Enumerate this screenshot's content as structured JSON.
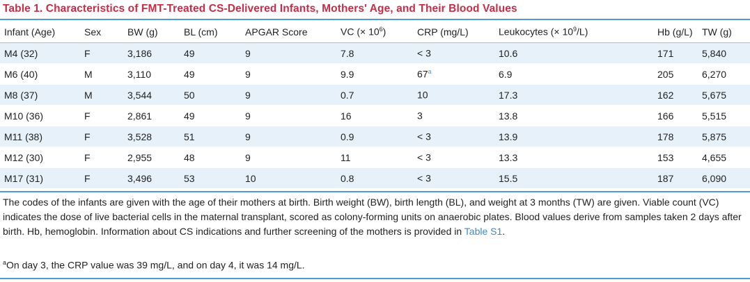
{
  "title": "Table 1.  Characteristics of FMT-Treated CS-Delivered Infants, Mothers' Age, and Their Blood Values",
  "headers": {
    "infant": "Infant (Age)",
    "sex": "Sex",
    "bw": "BW (g)",
    "bl": "BL (cm)",
    "apgar": "APGAR Score",
    "vc_base": "VC (× 10",
    "vc_exp": "6",
    "vc_end": ")",
    "crp": "CRP (mg/L)",
    "leuk_base": "Leukocytes (× 10",
    "leuk_exp": "9",
    "leuk_end": "/L)",
    "hb": "Hb (g/L)",
    "tw": "TW (g)"
  },
  "rows": [
    {
      "infant": "M4 (32)",
      "sex": "F",
      "bw": "3,186",
      "bl": "49",
      "apgar": "9",
      "vc": "7.8",
      "crp": "< 3",
      "crp_note": "",
      "leuk": "10.6",
      "hb": "171",
      "tw": "5,840"
    },
    {
      "infant": "M6 (40)",
      "sex": "M",
      "bw": "3,110",
      "bl": "49",
      "apgar": "9",
      "vc": "9.9",
      "crp": "67",
      "crp_note": "a",
      "leuk": "6.9",
      "hb": "205",
      "tw": "6,270"
    },
    {
      "infant": "M8 (37)",
      "sex": "M",
      "bw": "3,544",
      "bl": "50",
      "apgar": "9",
      "vc": "0.7",
      "crp": "10",
      "crp_note": "",
      "leuk": "17.3",
      "hb": "162",
      "tw": "5,675"
    },
    {
      "infant": "M10 (36)",
      "sex": "F",
      "bw": "2,861",
      "bl": "49",
      "apgar": "9",
      "vc": "16",
      "crp": "3",
      "crp_note": "",
      "leuk": "13.8",
      "hb": "166",
      "tw": "5,515"
    },
    {
      "infant": "M11 (38)",
      "sex": "F",
      "bw": "3,528",
      "bl": "51",
      "apgar": "9",
      "vc": "0.9",
      "crp": "< 3",
      "crp_note": "",
      "leuk": "13.9",
      "hb": "178",
      "tw": "5,875"
    },
    {
      "infant": "M12 (30)",
      "sex": "F",
      "bw": "2,955",
      "bl": "48",
      "apgar": "9",
      "vc": "11",
      "crp": "< 3",
      "crp_note": "",
      "leuk": "13.3",
      "hb": "153",
      "tw": "4,655"
    },
    {
      "infant": "M17 (31)",
      "sex": "F",
      "bw": "3,496",
      "bl": "53",
      "apgar": "10",
      "vc": "0.8",
      "crp": "< 3",
      "crp_note": "",
      "leuk": "15.5",
      "hb": "187",
      "tw": "6,090"
    }
  ],
  "footnote": {
    "text": "The codes of the infants are given with the age of their mothers at birth. Birth weight (BW), birth length (BL), and weight at 3 months (TW) are given. Viable count (VC) indicates the dose of live bacterial cells in the maternal transplant, scored as colony-forming units on anaerobic plates. Blood values derive from samples taken 2 days after birth. Hb, hemoglobin. Information about CS indications and further screening of the mothers is provided in ",
    "link": "Table S1",
    "end": ".",
    "note_marker": "a",
    "note_text": "On day 3, the CRP value was 39 mg/L, and on day 4, it was 14 mg/L."
  },
  "colors": {
    "title": "#c62d46",
    "rule": "#4a9bd6",
    "stripe": "#e6f1f9",
    "link": "#3a8ccc"
  }
}
